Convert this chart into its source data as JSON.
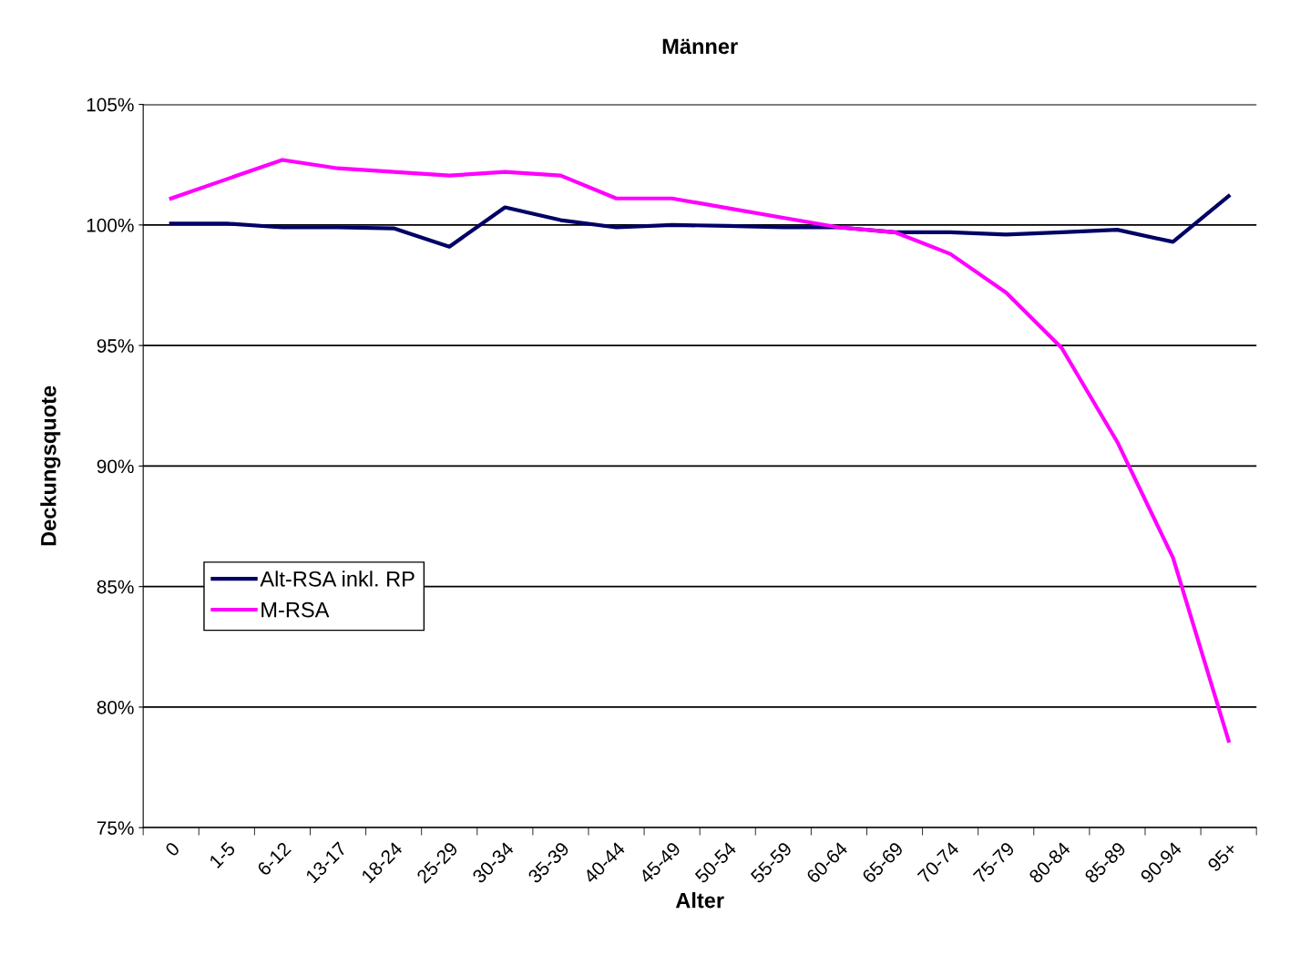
{
  "chart_data": {
    "type": "line",
    "title": "Männer",
    "xlabel": "Alter",
    "ylabel": "Deckungsquote",
    "categories": [
      "0",
      "1-5",
      "6-12",
      "13-17",
      "18-24",
      "25-29",
      "30-34",
      "35-39",
      "40-44",
      "45-49",
      "50-54",
      "55-59",
      "60-64",
      "65-69",
      "70-74",
      "75-79",
      "80-84",
      "85-89",
      "90-94",
      "95+"
    ],
    "series": [
      {
        "name": "Alt-RSA inkl. RP",
        "color": "#000066",
        "values": [
          100.06,
          100.06,
          99.9,
          99.9,
          99.86,
          99.1,
          100.73,
          100.2,
          99.9,
          100.0,
          99.96,
          99.9,
          99.9,
          99.7,
          99.7,
          99.6,
          99.7,
          99.8,
          99.3,
          101.2
        ]
      },
      {
        "name": "M-RSA",
        "color": "#ff00ff",
        "values": [
          101.1,
          101.9,
          102.7,
          102.35,
          102.2,
          102.05,
          102.2,
          102.05,
          101.1,
          101.1,
          100.7,
          100.3,
          99.9,
          99.7,
          98.8,
          97.2,
          94.9,
          91.0,
          86.2,
          78.6
        ]
      }
    ],
    "ylim": [
      75,
      105
    ],
    "yticks": [
      {
        "value": 75,
        "label": "75%"
      },
      {
        "value": 80,
        "label": "80%"
      },
      {
        "value": 85,
        "label": "85%"
      },
      {
        "value": 90,
        "label": "90%"
      },
      {
        "value": 95,
        "label": "95%"
      },
      {
        "value": 100,
        "label": "100%"
      },
      {
        "value": 105,
        "label": "105%"
      }
    ],
    "grid": "y",
    "legend": "left",
    "marker": "none",
    "line_style": "solid"
  }
}
